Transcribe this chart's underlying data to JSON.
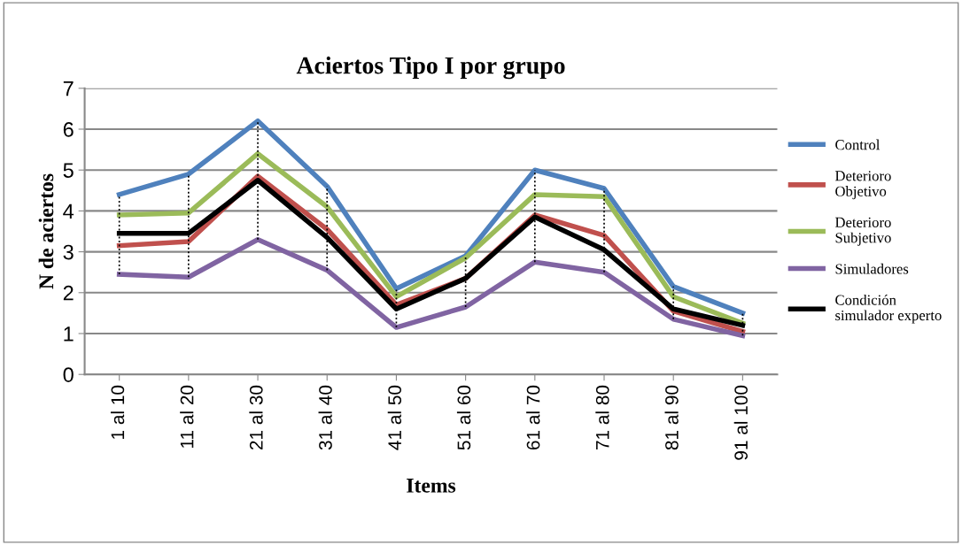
{
  "chart_data": {
    "type": "line",
    "title": "Aciertos Tipo I por grupo",
    "xlabel": "Items",
    "ylabel": "N de aciertos",
    "categories": [
      "1 al 10",
      "11 al 20",
      "21 al 30",
      "31 al 40",
      "41 al 50",
      "51 al 60",
      "61 al 70",
      "71 al 80",
      "81 al 90",
      "91 al 100"
    ],
    "series": [
      {
        "name": "Control",
        "color": "#4f81bd",
        "values": [
          4.4,
          4.9,
          6.2,
          4.6,
          2.1,
          2.9,
          5.0,
          4.55,
          2.15,
          1.5
        ],
        "errors": [
          [
            2.45,
            4.4
          ],
          [
            2.38,
            4.9
          ],
          [
            3.3,
            6.2
          ],
          [
            2.55,
            4.6
          ],
          [
            1.15,
            2.1
          ],
          [
            1.65,
            2.9
          ],
          [
            2.75,
            5.0
          ],
          [
            2.5,
            4.55
          ],
          [
            1.35,
            2.15
          ],
          [
            0.95,
            1.5
          ]
        ]
      },
      {
        "name": "Deterioro\nObjetivo",
        "color": "#c0504d",
        "values": [
          3.15,
          3.25,
          4.85,
          3.55,
          1.7,
          2.35,
          3.9,
          3.4,
          1.55,
          1.05
        ]
      },
      {
        "name": "Deterioro\nSubjetivo",
        "color": "#9bbb59",
        "values": [
          3.9,
          3.95,
          5.4,
          4.1,
          1.9,
          2.85,
          4.4,
          4.35,
          1.9,
          1.25
        ]
      },
      {
        "name": "Simuladores",
        "color": "#8064a2",
        "values": [
          2.45,
          2.38,
          3.3,
          2.55,
          1.15,
          1.65,
          2.75,
          2.5,
          1.35,
          0.95
        ]
      },
      {
        "name": "Condición\nsimulador experto",
        "color": "#000000",
        "values": [
          3.45,
          3.45,
          4.75,
          3.35,
          1.6,
          2.35,
          3.85,
          3.05,
          1.6,
          1.2
        ]
      }
    ],
    "ylim": [
      0,
      7
    ],
    "yticks": [
      0,
      1,
      2,
      3,
      4,
      5,
      6,
      7
    ],
    "grid": "y",
    "legend": "right",
    "line_style": "solid",
    "marker": "none"
  }
}
